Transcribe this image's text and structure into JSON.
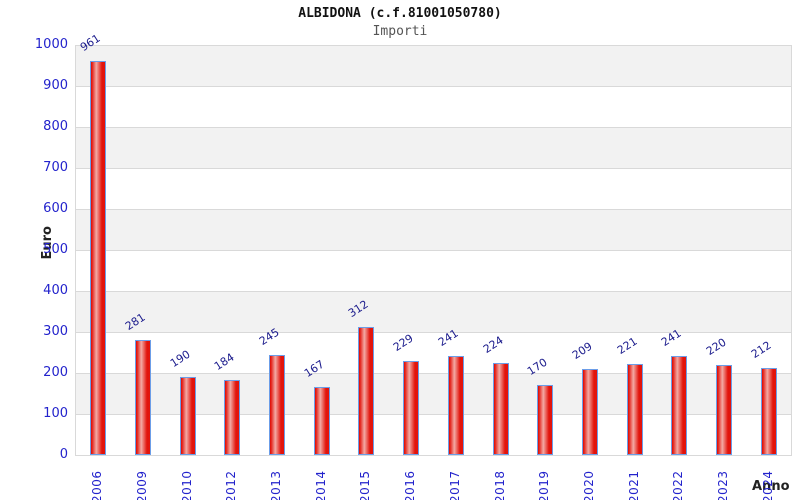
{
  "header": {
    "title": "ALBIDONA (c.f.81001050780)",
    "subtitle": "Importi"
  },
  "chart_data": {
    "type": "bar",
    "title": "ALBIDONA (c.f.81001050780)",
    "subtitle": "Importi",
    "categories": [
      "2006",
      "2009",
      "2010",
      "2012",
      "2013",
      "2014",
      "2015",
      "2016",
      "2017",
      "2018",
      "2019",
      "2020",
      "2021",
      "2022",
      "2023",
      "2024"
    ],
    "values": [
      961,
      281,
      190,
      184,
      245,
      167,
      312,
      229,
      241,
      224,
      170,
      209,
      221,
      241,
      220,
      212
    ],
    "xlabel": "Anno",
    "ylabel": "Euro",
    "ylim": [
      0,
      1000
    ],
    "ytick_step": 100,
    "yticks": [
      0,
      100,
      200,
      300,
      400,
      500,
      600,
      700,
      800,
      900,
      1000
    ],
    "grid": "horizontal-alternating-bands",
    "legend": "none",
    "colors": {
      "bar_fill_dark": "#e2140c",
      "bar_fill_light": "#f3aaa4",
      "bar_border": "#6b9de8",
      "value_label": "#1a1a8c",
      "axis_tick_label": "#2323cc",
      "band_gray": "#f2f2f2",
      "band_white": "#ffffff",
      "grid_line": "#d9d9d9",
      "axis_title": "#222222"
    }
  }
}
